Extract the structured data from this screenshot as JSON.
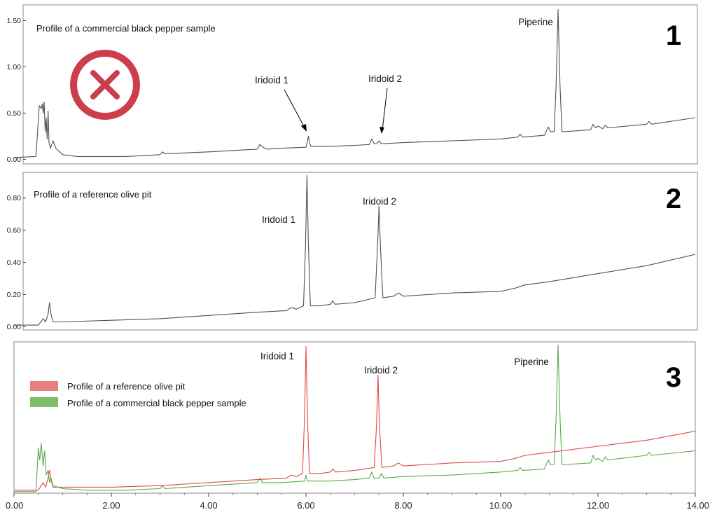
{
  "chart_data": [
    {
      "type": "line",
      "panel_number": "1",
      "title": "Profile of a commercial black pepper sample",
      "xlim": [
        0,
        14
      ],
      "ylim": [
        -0.05,
        1.67
      ],
      "y_ticks": [
        "0.00",
        "0.50",
        "1.00",
        "1.50"
      ],
      "y_tick_values": [
        0.0,
        0.5,
        1.0,
        1.5
      ],
      "x_ticks_shown": false,
      "annotations": [
        {
          "text": "Iridoid 1",
          "x": 6.05,
          "peak_y": 0.25
        },
        {
          "text": "Iridoid 2",
          "x": 7.5,
          "peak_y": 0.2
        },
        {
          "text": "Piperine",
          "x": 11.18,
          "peak_y": 1.62
        }
      ],
      "overlay_symbol": "red-circle-x-icon",
      "series": [
        {
          "color": "#505050",
          "x": [
            0.0,
            0.45,
            0.52,
            0.56,
            0.58,
            0.6,
            0.62,
            0.64,
            0.66,
            0.68,
            0.7,
            0.72,
            0.75,
            0.8,
            0.86,
            1.0,
            1.3,
            1.8,
            2.3,
            3.0,
            3.05,
            3.1,
            4.0,
            5.0,
            5.05,
            5.12,
            5.2,
            5.5,
            6.0,
            6.03,
            6.05,
            6.07,
            6.1,
            6.5,
            7.0,
            7.3,
            7.35,
            7.4,
            7.45,
            7.5,
            7.55,
            7.6,
            8.0,
            9.0,
            10.0,
            10.35,
            10.4,
            10.45,
            10.9,
            10.98,
            11.02,
            11.1,
            11.14,
            11.18,
            11.22,
            11.26,
            11.35,
            11.85,
            11.9,
            11.95,
            12.0,
            12.1,
            12.15,
            12.2,
            13.0,
            13.05,
            13.1,
            14.0
          ],
          "y": [
            0.02,
            0.03,
            0.58,
            0.55,
            0.6,
            0.5,
            0.62,
            0.3,
            0.45,
            0.22,
            0.52,
            0.18,
            0.12,
            0.2,
            0.12,
            0.05,
            0.03,
            0.03,
            0.03,
            0.05,
            0.08,
            0.06,
            0.08,
            0.11,
            0.16,
            0.13,
            0.11,
            0.12,
            0.13,
            0.2,
            0.25,
            0.18,
            0.14,
            0.14,
            0.15,
            0.16,
            0.22,
            0.17,
            0.17,
            0.2,
            0.17,
            0.17,
            0.18,
            0.2,
            0.22,
            0.24,
            0.27,
            0.24,
            0.26,
            0.35,
            0.3,
            0.3,
            0.8,
            1.62,
            0.8,
            0.3,
            0.3,
            0.32,
            0.38,
            0.34,
            0.36,
            0.33,
            0.37,
            0.34,
            0.38,
            0.41,
            0.38,
            0.45
          ]
        }
      ]
    },
    {
      "type": "line",
      "panel_number": "2",
      "title": "Profile of a reference olive pit",
      "xlim": [
        0,
        14
      ],
      "ylim": [
        -0.02,
        0.96
      ],
      "y_ticks": [
        "0.00",
        "0.20",
        "0.40",
        "0.60",
        "0.80"
      ],
      "y_tick_values": [
        0.0,
        0.2,
        0.4,
        0.6,
        0.8
      ],
      "x_ticks_shown": false,
      "annotations": [
        {
          "text": "Iridoid 1",
          "x": 6.02,
          "peak_y": 0.94
        },
        {
          "text": "Iridoid 2",
          "x": 7.5,
          "peak_y": 0.75
        }
      ],
      "series": [
        {
          "color": "#505050",
          "x": [
            0.0,
            0.5,
            0.6,
            0.65,
            0.7,
            0.73,
            0.76,
            0.8,
            1.0,
            2.0,
            3.0,
            4.0,
            5.0,
            5.6,
            5.7,
            5.8,
            5.95,
            5.99,
            6.02,
            6.05,
            6.09,
            6.3,
            6.5,
            6.55,
            6.6,
            7.0,
            7.42,
            7.47,
            7.5,
            7.53,
            7.58,
            7.8,
            7.9,
            8.0,
            8.5,
            9.0,
            10.0,
            10.3,
            10.5,
            11.0,
            12.0,
            13.0,
            14.0
          ],
          "y": [
            0.01,
            0.01,
            0.05,
            0.03,
            0.08,
            0.15,
            0.08,
            0.03,
            0.03,
            0.04,
            0.05,
            0.07,
            0.09,
            0.1,
            0.12,
            0.11,
            0.13,
            0.5,
            0.94,
            0.5,
            0.13,
            0.13,
            0.14,
            0.16,
            0.14,
            0.15,
            0.18,
            0.5,
            0.75,
            0.5,
            0.18,
            0.19,
            0.21,
            0.19,
            0.2,
            0.21,
            0.22,
            0.24,
            0.26,
            0.28,
            0.33,
            0.38,
            0.45
          ]
        }
      ]
    },
    {
      "type": "line",
      "panel_number": "3",
      "title": "",
      "xlim": [
        0,
        14
      ],
      "ylim": [
        0,
        1
      ],
      "x_ticks": [
        "0.00",
        "2.00",
        "4.00",
        "6.00",
        "8.00",
        "10.00",
        "12.00",
        "14.00"
      ],
      "x_tick_values": [
        0,
        2,
        4,
        6,
        8,
        10,
        12,
        14
      ],
      "y_ticks_shown": false,
      "legend_position": "top-left",
      "annotations": [
        {
          "text": "Iridoid 1",
          "x": 6.0,
          "peak_y": 0.97
        },
        {
          "text": "Iridoid 2",
          "x": 7.48,
          "peak_y": 0.78
        },
        {
          "text": "Piperine",
          "x": 11.18,
          "peak_y": 0.98
        }
      ],
      "series": [
        {
          "name": "Profile of a reference olive pit",
          "color": "#e04848",
          "legend_color": "#e88080",
          "x": [
            0.0,
            0.5,
            0.6,
            0.65,
            0.7,
            0.73,
            0.76,
            0.8,
            1.0,
            2.0,
            3.0,
            4.0,
            5.0,
            5.6,
            5.7,
            5.8,
            5.93,
            5.97,
            6.0,
            6.03,
            6.07,
            6.3,
            6.5,
            6.55,
            6.6,
            7.0,
            7.4,
            7.45,
            7.48,
            7.51,
            7.56,
            7.8,
            7.9,
            8.0,
            8.5,
            9.0,
            10.0,
            10.3,
            10.5,
            11.0,
            12.0,
            13.0,
            14.0
          ],
          "y": [
            0.02,
            0.02,
            0.07,
            0.04,
            0.1,
            0.15,
            0.09,
            0.04,
            0.04,
            0.04,
            0.05,
            0.07,
            0.09,
            0.1,
            0.12,
            0.11,
            0.13,
            0.5,
            0.97,
            0.5,
            0.13,
            0.13,
            0.14,
            0.16,
            0.14,
            0.15,
            0.17,
            0.45,
            0.78,
            0.45,
            0.17,
            0.18,
            0.2,
            0.18,
            0.19,
            0.2,
            0.21,
            0.23,
            0.25,
            0.27,
            0.31,
            0.35,
            0.41
          ]
        },
        {
          "name": "Profile of a commercial black pepper sample",
          "color": "#5aa84a",
          "legend_color": "#7dbf68",
          "x": [
            0.0,
            0.45,
            0.5,
            0.53,
            0.56,
            0.6,
            0.63,
            0.66,
            0.7,
            0.73,
            0.76,
            0.8,
            1.0,
            1.5,
            2.0,
            2.3,
            3.0,
            3.05,
            3.1,
            4.0,
            5.0,
            5.05,
            5.1,
            5.5,
            5.97,
            6.0,
            6.03,
            6.5,
            7.0,
            7.3,
            7.35,
            7.4,
            7.5,
            7.55,
            7.6,
            8.0,
            9.0,
            10.0,
            10.35,
            10.4,
            10.45,
            10.9,
            10.98,
            11.02,
            11.1,
            11.14,
            11.18,
            11.22,
            11.26,
            11.35,
            11.85,
            11.9,
            11.95,
            12.0,
            12.1,
            12.15,
            12.2,
            13.0,
            13.05,
            13.1,
            14.0
          ],
          "y": [
            0.01,
            0.01,
            0.3,
            0.22,
            0.33,
            0.18,
            0.28,
            0.12,
            0.15,
            0.07,
            0.1,
            0.05,
            0.03,
            0.02,
            0.02,
            0.02,
            0.03,
            0.05,
            0.03,
            0.05,
            0.07,
            0.1,
            0.07,
            0.07,
            0.08,
            0.12,
            0.08,
            0.08,
            0.09,
            0.1,
            0.14,
            0.1,
            0.1,
            0.13,
            0.1,
            0.11,
            0.12,
            0.14,
            0.15,
            0.17,
            0.15,
            0.16,
            0.22,
            0.19,
            0.19,
            0.5,
            0.98,
            0.5,
            0.19,
            0.19,
            0.2,
            0.25,
            0.22,
            0.23,
            0.21,
            0.24,
            0.22,
            0.25,
            0.27,
            0.25,
            0.28
          ]
        }
      ]
    }
  ]
}
